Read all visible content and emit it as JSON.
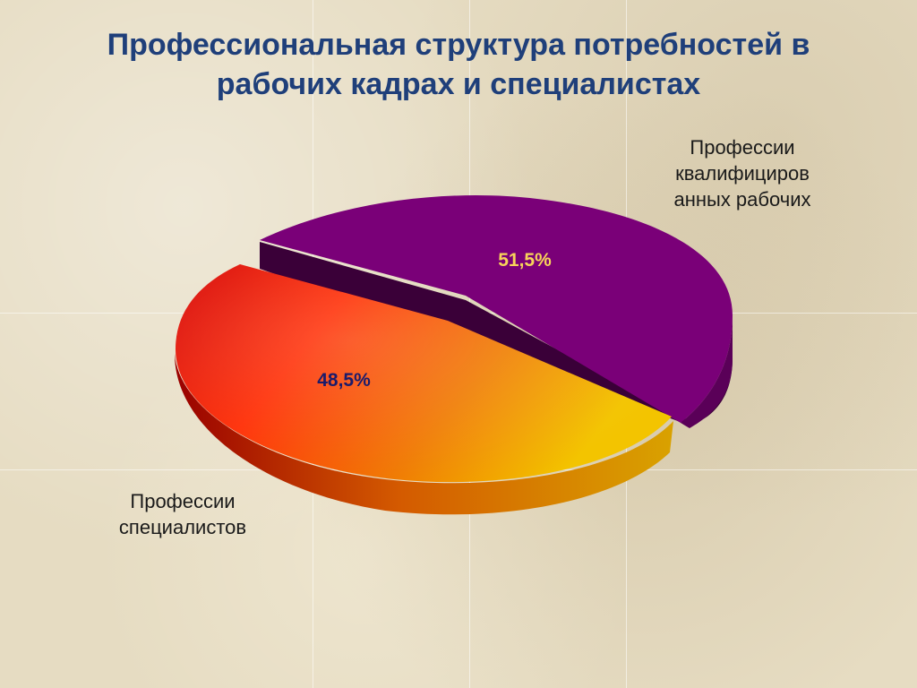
{
  "slide": {
    "title_line1": "Профессиональная структура потребностей в",
    "title_line2": "рабочих кадрах  и специалистах"
  },
  "chart_data": {
    "type": "pie",
    "title": "Профессиональная структура потребностей в рабочих кадрах  и специалистах",
    "slices": [
      {
        "name_lines": [
          "Профессии",
          "квалифициров",
          "анных рабочих"
        ],
        "value": 51.5,
        "label": "51,5%",
        "color": "#7a0078",
        "side_color": "#3a0038",
        "label_color": "#f7d35a"
      },
      {
        "name_lines": [
          "Профессии",
          "специалистов"
        ],
        "value": 48.5,
        "label": "48,5%",
        "color_start": "#e00000",
        "color_end": "#f3c000",
        "label_color": "#1b1b6b"
      }
    ]
  }
}
